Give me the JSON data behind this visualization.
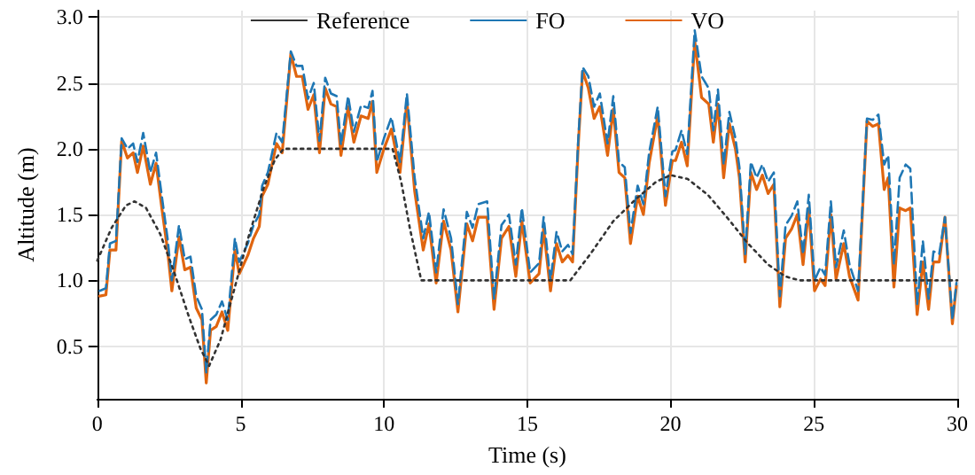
{
  "chart_data": {
    "type": "line",
    "xlabel": "Time (s)",
    "ylabel": "Altitude (m)",
    "xlim": [
      0,
      30
    ],
    "xticks": [
      0,
      5,
      10,
      15,
      20,
      25,
      30
    ],
    "ylim": [
      0.1,
      3.05
    ],
    "yticks": [
      {
        "value": 0.5,
        "label": "0.5"
      },
      {
        "value": 1,
        "label": "1.0"
      },
      {
        "value": 1.5,
        "label": "1.5"
      },
      {
        "value": 2,
        "label": "2.0"
      },
      {
        "value": 2.5,
        "label": "2.5"
      },
      {
        "value": 3,
        "label": "3.0"
      }
    ],
    "grid": true,
    "legend": "top",
    "marker": "none",
    "series": [
      {
        "name": "Reference",
        "color": "#333333",
        "line_style": "dotted",
        "x": [
          0,
          0.5,
          1,
          1.3,
          1.7,
          2.2,
          2.7,
          3.2,
          3.6,
          3.9,
          4.3,
          4.8,
          5.3,
          5.8,
          6.2,
          6.5,
          8,
          10.3,
          10.6,
          10.9,
          11.3,
          13,
          16.5,
          17.2,
          18,
          18.8,
          19.5,
          20,
          20.6,
          21.3,
          22,
          22.7,
          23.4,
          24,
          24.5,
          27,
          30
        ],
        "values": [
          1.15,
          1.4,
          1.57,
          1.6,
          1.55,
          1.35,
          1.05,
          0.72,
          0.48,
          0.35,
          0.55,
          0.95,
          1.35,
          1.7,
          1.92,
          2.0,
          2.0,
          2.0,
          1.75,
          1.4,
          1.0,
          1.0,
          1.0,
          1.2,
          1.45,
          1.62,
          1.75,
          1.8,
          1.77,
          1.65,
          1.47,
          1.28,
          1.12,
          1.03,
          1.0,
          1.0,
          1.0
        ]
      },
      {
        "name": "FO",
        "color": "#1f77b4",
        "line_style": "dashed",
        "x": [
          0.08,
          0.3,
          0.44,
          0.65,
          0.85,
          1.05,
          1.25,
          1.4,
          1.6,
          1.85,
          2.05,
          2.25,
          2.45,
          2.6,
          2.85,
          3.05,
          3.25,
          3.45,
          3.65,
          3.8,
          3.95,
          4.15,
          4.35,
          4.55,
          4.8,
          4.95,
          5.25,
          5.45,
          5.65,
          5.75,
          5.95,
          6.25,
          6.45,
          6.75,
          6.95,
          7.15,
          7.35,
          7.55,
          7.75,
          7.95,
          8.15,
          8.35,
          8.5,
          8.75,
          8.95,
          9.2,
          9.45,
          9.6,
          9.75,
          10.0,
          10.26,
          10.56,
          10.8,
          11.07,
          11.37,
          11.57,
          11.82,
          12.08,
          12.34,
          12.58,
          12.89,
          13.09,
          13.29,
          13.6,
          13.84,
          14.1,
          14.36,
          14.6,
          14.81,
          15.1,
          15.41,
          15.57,
          15.81,
          16.02,
          16.22,
          16.42,
          16.58,
          16.78,
          16.93,
          17.13,
          17.33,
          17.53,
          17.8,
          18.0,
          18.2,
          18.4,
          18.6,
          18.85,
          19.05,
          19.25,
          19.55,
          19.82,
          20.06,
          20.17,
          20.38,
          20.58,
          20.84,
          21.08,
          21.33,
          21.49,
          21.65,
          21.85,
          22.05,
          22.26,
          22.4,
          22.6,
          22.8,
          23.0,
          23.2,
          23.4,
          23.6,
          23.81,
          24.01,
          24.22,
          24.42,
          24.62,
          24.82,
          25.02,
          25.23,
          25.39,
          25.59,
          25.77,
          26.04,
          26.24,
          26.54,
          26.85,
          27.05,
          27.25,
          27.45,
          27.59,
          27.79,
          27.99,
          28.2,
          28.36,
          28.6,
          28.8,
          29.0,
          29.17,
          29.37,
          29.57,
          29.83,
          29.97
        ],
        "values": [
          0.92,
          0.94,
          1.28,
          1.3,
          2.08,
          2.0,
          2.04,
          1.9,
          2.12,
          1.82,
          1.97,
          1.64,
          1.32,
          1.0,
          1.42,
          1.16,
          1.18,
          0.88,
          0.78,
          0.3,
          0.7,
          0.74,
          0.84,
          0.7,
          1.32,
          1.14,
          1.28,
          1.42,
          1.5,
          1.72,
          1.82,
          2.12,
          2.05,
          2.74,
          2.63,
          2.63,
          2.38,
          2.5,
          2.06,
          2.54,
          2.42,
          2.4,
          2.03,
          2.4,
          2.13,
          2.33,
          2.31,
          2.44,
          1.9,
          2.08,
          2.24,
          1.9,
          2.42,
          1.78,
          1.32,
          1.52,
          1.06,
          1.54,
          1.32,
          0.82,
          1.52,
          1.4,
          1.58,
          1.6,
          0.86,
          1.42,
          1.5,
          1.12,
          1.55,
          1.06,
          1.13,
          1.48,
          1.0,
          1.37,
          1.22,
          1.27,
          1.2,
          2.08,
          2.62,
          2.55,
          2.32,
          2.42,
          2.04,
          2.4,
          1.9,
          1.86,
          1.36,
          1.72,
          1.58,
          1.97,
          2.32,
          1.64,
          1.98,
          1.99,
          2.14,
          1.96,
          2.9,
          2.55,
          2.46,
          2.14,
          2.45,
          1.88,
          2.28,
          2.08,
          1.86,
          1.2,
          1.9,
          1.78,
          1.88,
          1.75,
          1.82,
          0.88,
          1.42,
          1.49,
          1.6,
          1.2,
          1.65,
          1.0,
          1.1,
          1.04,
          1.6,
          1.1,
          1.38,
          1.12,
          0.92,
          2.23,
          2.22,
          2.26,
          1.88,
          1.95,
          1.12,
          1.78,
          1.88,
          1.85,
          0.82,
          1.3,
          0.86,
          1.22,
          1.2,
          1.48,
          0.7,
          0.98
        ]
      },
      {
        "name": "VO",
        "color": "#e0650f",
        "line_style": "solid",
        "x": [
          0.08,
          0.3,
          0.44,
          0.65,
          0.85,
          1.05,
          1.25,
          1.4,
          1.6,
          1.85,
          2.05,
          2.25,
          2.45,
          2.6,
          2.85,
          3.05,
          3.25,
          3.45,
          3.65,
          3.8,
          3.95,
          4.15,
          4.35,
          4.55,
          4.8,
          4.95,
          5.25,
          5.45,
          5.65,
          5.75,
          5.95,
          6.25,
          6.45,
          6.75,
          6.95,
          7.15,
          7.35,
          7.55,
          7.75,
          7.95,
          8.15,
          8.35,
          8.5,
          8.75,
          8.95,
          9.2,
          9.45,
          9.6,
          9.75,
          10.0,
          10.26,
          10.56,
          10.8,
          11.07,
          11.37,
          11.57,
          11.82,
          12.08,
          12.34,
          12.58,
          12.89,
          13.09,
          13.29,
          13.6,
          13.84,
          14.1,
          14.36,
          14.6,
          14.81,
          15.1,
          15.41,
          15.57,
          15.81,
          16.02,
          16.22,
          16.42,
          16.58,
          16.78,
          16.93,
          17.13,
          17.33,
          17.53,
          17.8,
          18.0,
          18.2,
          18.4,
          18.6,
          18.85,
          19.05,
          19.25,
          19.55,
          19.82,
          20.06,
          20.17,
          20.38,
          20.58,
          20.84,
          21.08,
          21.33,
          21.49,
          21.65,
          21.85,
          22.05,
          22.26,
          22.4,
          22.6,
          22.8,
          23.0,
          23.2,
          23.4,
          23.6,
          23.81,
          24.01,
          24.22,
          24.42,
          24.62,
          24.82,
          25.02,
          25.23,
          25.39,
          25.59,
          25.77,
          26.04,
          26.24,
          26.54,
          26.85,
          27.05,
          27.25,
          27.45,
          27.59,
          27.79,
          27.99,
          28.2,
          28.36,
          28.6,
          28.8,
          29.0,
          29.17,
          29.37,
          29.57,
          29.83,
          29.97
        ],
        "values": [
          0.88,
          0.89,
          1.23,
          1.23,
          2.06,
          1.93,
          1.97,
          1.82,
          2.02,
          1.73,
          1.89,
          1.55,
          1.23,
          0.92,
          1.33,
          1.08,
          1.1,
          0.79,
          0.7,
          0.22,
          0.62,
          0.65,
          0.76,
          0.62,
          1.23,
          1.05,
          1.19,
          1.32,
          1.41,
          1.64,
          1.73,
          2.04,
          1.97,
          2.72,
          2.55,
          2.55,
          2.3,
          2.41,
          1.97,
          2.46,
          2.34,
          2.32,
          1.95,
          2.32,
          2.05,
          2.25,
          2.23,
          2.36,
          1.82,
          2.0,
          2.15,
          1.82,
          2.36,
          1.68,
          1.23,
          1.43,
          0.98,
          1.45,
          1.23,
          0.76,
          1.43,
          1.3,
          1.48,
          1.48,
          0.78,
          1.32,
          1.41,
          1.03,
          1.45,
          0.98,
          1.05,
          1.39,
          0.92,
          1.28,
          1.14,
          1.19,
          1.14,
          2.04,
          2.59,
          2.46,
          2.23,
          2.32,
          1.95,
          2.3,
          1.82,
          1.78,
          1.28,
          1.64,
          1.5,
          1.89,
          2.25,
          1.57,
          1.91,
          1.91,
          2.05,
          1.87,
          2.82,
          2.39,
          2.34,
          2.05,
          2.34,
          1.78,
          2.19,
          2.0,
          1.78,
          1.14,
          1.82,
          1.69,
          1.8,
          1.66,
          1.73,
          0.8,
          1.32,
          1.39,
          1.5,
          1.12,
          1.55,
          0.92,
          1.01,
          0.96,
          1.5,
          1.01,
          1.28,
          1.03,
          0.85,
          2.21,
          2.17,
          2.19,
          1.69,
          1.78,
          0.95,
          1.55,
          1.53,
          1.55,
          0.74,
          1.14,
          0.78,
          1.14,
          1.14,
          1.48,
          0.67,
          0.96
        ]
      }
    ]
  }
}
